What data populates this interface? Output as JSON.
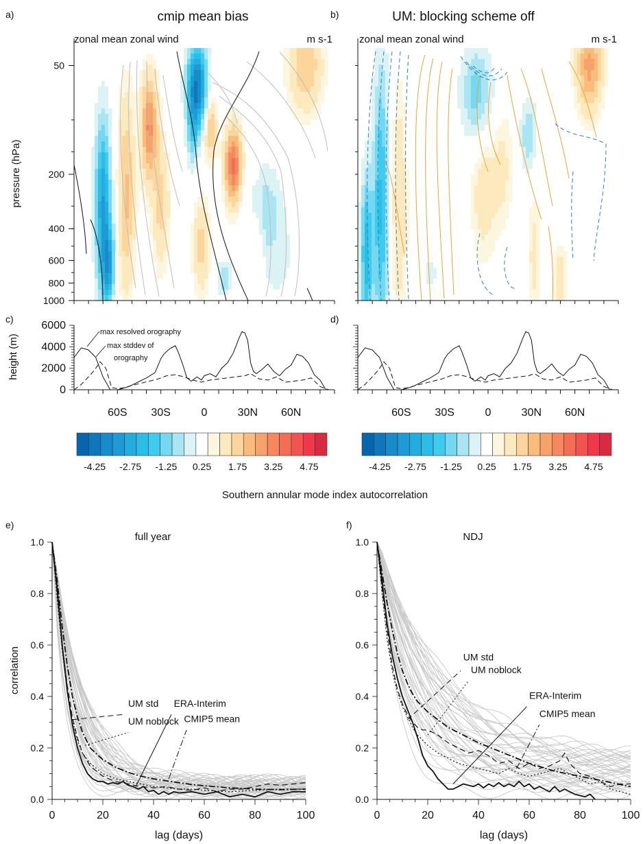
{
  "panel_labels": [
    "a)",
    "b)",
    "c)",
    "d)",
    "e)",
    "f)"
  ],
  "colorbar": {
    "colors": [
      "#0565ae",
      "#0f78bd",
      "#178bcb",
      "#1e9ad5",
      "#25acdf",
      "#2cbde7",
      "#3fcbee",
      "#73d8f0",
      "#a9e5f2",
      "#dcf3f6",
      "#ffffff",
      "#fdf6df",
      "#fde9be",
      "#fbd59b",
      "#f9bc7c",
      "#f8a26b",
      "#f6885f",
      "#f46e56",
      "#f3534f",
      "#f1384a",
      "#d62b40"
    ],
    "tick_labels": [
      "-4.25",
      "-2.75",
      "-1.25",
      "0.25",
      "1.75",
      "3.25",
      "4.75"
    ]
  },
  "chart_data": [
    {
      "id": "a",
      "type": "heatmap",
      "title": "cmip mean bias",
      "subtitle": "zonal mean zonal wind",
      "units_label": "m s-1",
      "ylabel": "pressure (hPa)",
      "yticks": [
        "50",
        "200",
        "400",
        "600",
        "800",
        "1000"
      ],
      "ylim": [
        1000,
        40
      ],
      "xlim": [
        -90,
        90
      ],
      "cells": [
        {
          "x": -70,
          "p": 300,
          "v": -3.5,
          "sx": 4,
          "sp": 240
        },
        {
          "x": -66,
          "p": 650,
          "v": -2.8,
          "sx": 3,
          "sp": 220
        },
        {
          "x": -54,
          "p": 260,
          "v": 1.6,
          "sx": 4,
          "sp": 220
        },
        {
          "x": -38,
          "p": 110,
          "v": 2.6,
          "sx": 4,
          "sp": 50
        },
        {
          "x": -30,
          "p": 300,
          "v": 1.2,
          "sx": 4,
          "sp": 160
        },
        {
          "x": -5,
          "p": 65,
          "v": -4.6,
          "sx": 5,
          "sp": 25
        },
        {
          "x": -8,
          "p": 120,
          "v": -1.5,
          "sx": 3,
          "sp": 40
        },
        {
          "x": 4,
          "p": 110,
          "v": 1.8,
          "sx": 3,
          "sp": 30
        },
        {
          "x": 20,
          "p": 180,
          "v": 3.2,
          "sx": 4,
          "sp": 60
        },
        {
          "x": -2,
          "p": 500,
          "v": 1.2,
          "sx": 4,
          "sp": 200
        },
        {
          "x": 14,
          "p": 750,
          "v": -1.4,
          "sx": 4,
          "sp": 120
        },
        {
          "x": 42,
          "p": 300,
          "v": -1.2,
          "sx": 8,
          "sp": 120
        },
        {
          "x": 50,
          "p": 600,
          "v": -0.6,
          "sx": 12,
          "sp": 300
        },
        {
          "x": 70,
          "p": 50,
          "v": 1.5,
          "sx": 8,
          "sp": 20
        },
        {
          "x": 37,
          "p": 500,
          "v": 0.8,
          "sx": 3,
          "sp": 250
        }
      ]
    },
    {
      "id": "b",
      "type": "heatmap",
      "title": "UM: blocking scheme off",
      "subtitle": "zonal mean zonal wind",
      "units_label": "m s-1",
      "ylim": [
        1000,
        40
      ],
      "xlim": [
        -90,
        90
      ],
      "cells": [
        {
          "x": -84,
          "p": 550,
          "v": -2.8,
          "sx": 3,
          "sp": 400
        },
        {
          "x": -74,
          "p": 300,
          "v": -2.6,
          "sx": 4,
          "sp": 400
        },
        {
          "x": -62,
          "p": 300,
          "v": 1.0,
          "sx": 4,
          "sp": 300
        },
        {
          "x": -8,
          "p": 70,
          "v": -1.8,
          "sx": 8,
          "sp": 30
        },
        {
          "x": -3,
          "p": 250,
          "v": 0.8,
          "sx": 6,
          "sp": 150
        },
        {
          "x": 10,
          "p": 180,
          "v": 0.6,
          "sx": 5,
          "sp": 100
        },
        {
          "x": 28,
          "p": 120,
          "v": -1.5,
          "sx": 4,
          "sp": 40
        },
        {
          "x": 32,
          "p": 550,
          "v": 0.7,
          "sx": 3,
          "sp": 300
        },
        {
          "x": 50,
          "p": 700,
          "v": 0.8,
          "sx": 4,
          "sp": 300
        },
        {
          "x": 52,
          "p": 300,
          "v": -0.5,
          "sx": 8,
          "sp": 150
        },
        {
          "x": 70,
          "p": 50,
          "v": 2.2,
          "sx": 6,
          "sp": 20
        },
        {
          "x": -40,
          "p": 700,
          "v": -0.6,
          "sx": 6,
          "sp": 150
        }
      ]
    },
    {
      "id": "c",
      "type": "line",
      "ylabel": "height (m)",
      "yticks": [
        0,
        2000,
        4000,
        6000
      ],
      "ylim": [
        0,
        6000
      ],
      "xlim": [
        -90,
        90
      ],
      "xtick_labels": [
        {
          "x": -60,
          "label": "60S"
        },
        {
          "x": -30,
          "label": "30S"
        },
        {
          "x": 0,
          "label": "0"
        },
        {
          "x": 30,
          "label": "30N"
        },
        {
          "x": 60,
          "label": "60N"
        }
      ],
      "annotations": [
        "max resolved orography",
        "max stddev of",
        "orography"
      ],
      "series": [
        {
          "style": "solid",
          "x": [
            -90,
            -85,
            -80,
            -75,
            -70,
            -65,
            -62,
            -60,
            -57,
            -52,
            -46,
            -40,
            -34,
            -30,
            -28,
            -24,
            -20,
            -18,
            -15,
            -12,
            -9,
            -5,
            -2,
            0,
            4,
            8,
            12,
            16,
            20,
            24,
            26,
            28,
            30,
            32,
            34,
            36,
            40,
            44,
            48,
            52,
            56,
            60,
            64,
            68,
            72,
            76,
            80,
            84,
            90
          ],
          "y": [
            3000,
            3900,
            3700,
            3000,
            1200,
            0,
            0,
            0,
            100,
            300,
            700,
            1100,
            1600,
            2900,
            3300,
            3800,
            4100,
            3500,
            2400,
            1100,
            800,
            1200,
            900,
            1300,
            1500,
            1200,
            2000,
            2500,
            3400,
            4800,
            5400,
            5300,
            4600,
            2500,
            1700,
            1500,
            1900,
            2400,
            1700,
            1300,
            1900,
            2300,
            3300,
            3100,
            2500,
            1400,
            900,
            0,
            0
          ]
        },
        {
          "style": "dashed",
          "x": [
            -90,
            -85,
            -80,
            -76,
            -72,
            -68,
            -64,
            -60,
            -55,
            -50,
            -44,
            -38,
            -32,
            -26,
            -20,
            -14,
            -8,
            -2,
            4,
            10,
            16,
            22,
            28,
            32,
            38,
            44,
            50,
            56,
            62,
            68,
            74,
            80,
            86,
            90
          ],
          "y": [
            0,
            500,
            1200,
            1800,
            2600,
            2000,
            200,
            100,
            200,
            400,
            600,
            800,
            1000,
            1300,
            1400,
            1200,
            900,
            700,
            900,
            1000,
            1100,
            1200,
            1300,
            1500,
            1000,
            900,
            1200,
            700,
            800,
            900,
            1100,
            300,
            0,
            0
          ]
        }
      ]
    },
    {
      "id": "d",
      "type": "line",
      "ylim": [
        0,
        6000
      ],
      "xlim": [
        -90,
        90
      ],
      "xtick_labels": [
        {
          "x": -60,
          "label": "60S"
        },
        {
          "x": -30,
          "label": "30S"
        },
        {
          "x": 0,
          "label": "0"
        },
        {
          "x": 30,
          "label": "30N"
        },
        {
          "x": 60,
          "label": "60N"
        }
      ]
    },
    {
      "id": "e",
      "type": "line",
      "suptitle": "Southern annular mode index autocorrelation",
      "title": "full year",
      "xlabel": "lag (days)",
      "ylabel": "correlation",
      "xlim": [
        0,
        100
      ],
      "ylim": [
        0,
        1
      ],
      "xticks": [
        0,
        20,
        40,
        60,
        80,
        100
      ],
      "yticks": [
        "0.0",
        "0.2",
        "0.4",
        "0.6",
        "0.8",
        "1.0"
      ],
      "annotations": [
        {
          "text": "UM std",
          "x": 30,
          "y": 0.35
        },
        {
          "text": "UM noblock",
          "x": 30,
          "y": 0.28
        },
        {
          "text": "ERA-Interim",
          "x": 48,
          "y": 0.35
        },
        {
          "text": "CMIP5 mean",
          "x": 52,
          "y": 0.29
        }
      ],
      "series": [
        {
          "name": "ERA-Interim",
          "style": "solid",
          "x": [
            0,
            2,
            4,
            6,
            8,
            10,
            12,
            14,
            16,
            18,
            20,
            22,
            24,
            26,
            28,
            30,
            32,
            34,
            36,
            38,
            40,
            42,
            44,
            46,
            48,
            50,
            55,
            60,
            65,
            70,
            75,
            80,
            85,
            90,
            95,
            100
          ],
          "y": [
            1.0,
            0.82,
            0.6,
            0.42,
            0.29,
            0.2,
            0.14,
            0.1,
            0.08,
            0.07,
            0.07,
            0.06,
            0.065,
            0.06,
            0.07,
            0.055,
            0.05,
            0.04,
            0.05,
            0.03,
            0.035,
            0.02,
            0.03,
            0.02,
            0.03,
            0.025,
            0.03,
            0.02,
            0.03,
            0.01,
            0.02,
            0.01,
            0.03,
            0.02,
            0.03,
            0.03
          ]
        },
        {
          "name": "CMIP5 mean",
          "style": "dashdot",
          "x": [
            0,
            2,
            4,
            6,
            8,
            10,
            12,
            15,
            20,
            25,
            30,
            35,
            40,
            45,
            50,
            55,
            60,
            70,
            80,
            90,
            100
          ],
          "y": [
            1.0,
            0.85,
            0.67,
            0.52,
            0.4,
            0.32,
            0.26,
            0.2,
            0.155,
            0.125,
            0.105,
            0.09,
            0.08,
            0.072,
            0.065,
            0.058,
            0.053,
            0.045,
            0.04,
            0.038,
            0.04
          ]
        },
        {
          "name": "UM std",
          "style": "dashed",
          "x": [
            0,
            2,
            4,
            6,
            8,
            10,
            12,
            15,
            20,
            25,
            30,
            35,
            40,
            45,
            50,
            55,
            60,
            65,
            70,
            75,
            80,
            85,
            90,
            95,
            100
          ],
          "y": [
            1.0,
            0.8,
            0.6,
            0.44,
            0.32,
            0.24,
            0.18,
            0.13,
            0.09,
            0.07,
            0.06,
            0.05,
            0.045,
            0.05,
            0.04,
            0.035,
            0.045,
            0.03,
            0.04,
            0.04,
            0.05,
            0.06,
            0.055,
            0.06,
            0.065
          ]
        },
        {
          "name": "UM noblock",
          "style": "dotted",
          "x": [
            0,
            2,
            4,
            6,
            8,
            10,
            12,
            15,
            20,
            25,
            30,
            35,
            40,
            45,
            50,
            55,
            60,
            70,
            80,
            90,
            100
          ],
          "y": [
            1.0,
            0.78,
            0.58,
            0.42,
            0.31,
            0.23,
            0.18,
            0.14,
            0.1,
            0.08,
            0.07,
            0.06,
            0.05,
            0.045,
            0.04,
            0.04,
            0.035,
            0.03,
            0.035,
            0.04,
            0.04
          ]
        }
      ]
    },
    {
      "id": "f",
      "type": "line",
      "title": "NDJ",
      "xlabel": "lag (days)",
      "xlim": [
        0,
        100
      ],
      "ylim": [
        0,
        1
      ],
      "xticks": [
        0,
        20,
        40,
        60,
        80,
        100
      ],
      "yticks": [
        "0.0",
        "0.2",
        "0.4",
        "0.6",
        "0.8",
        "1.0"
      ],
      "annotations": [
        {
          "text": "UM std",
          "x": 34,
          "y": 0.53
        },
        {
          "text": "UM noblock",
          "x": 37,
          "y": 0.48
        },
        {
          "text": "ERA-Interim",
          "x": 60,
          "y": 0.38
        },
        {
          "text": "CMIP5 mean",
          "x": 64,
          "y": 0.31
        }
      ],
      "series": [
        {
          "name": "ERA-Interim",
          "style": "solid",
          "x": [
            0,
            2,
            4,
            6,
            8,
            10,
            12,
            14,
            16,
            18,
            20,
            22,
            24,
            26,
            28,
            30,
            32,
            34,
            36,
            38,
            40,
            42,
            44,
            46,
            48,
            50,
            52,
            54,
            56,
            58,
            60,
            62,
            64,
            66,
            68,
            70,
            72,
            74,
            76,
            78,
            80,
            82,
            84,
            86
          ],
          "y": [
            1.0,
            0.85,
            0.68,
            0.56,
            0.47,
            0.4,
            0.35,
            0.3,
            0.24,
            0.17,
            0.13,
            0.11,
            0.08,
            0.06,
            0.04,
            0.04,
            0.05,
            0.06,
            0.055,
            0.05,
            0.06,
            0.045,
            0.06,
            0.05,
            0.065,
            0.05,
            0.06,
            0.05,
            0.07,
            0.05,
            0.06,
            0.04,
            0.05,
            0.04,
            0.03,
            0.05,
            0.03,
            0.04,
            0.03,
            0.02,
            0.015,
            0.01,
            0.02,
            0.0
          ]
        },
        {
          "name": "CMIP5 mean",
          "style": "dashdot",
          "x": [
            0,
            2,
            4,
            6,
            8,
            10,
            12,
            14,
            16,
            18,
            20,
            24,
            28,
            32,
            36,
            40,
            45,
            50,
            55,
            60,
            65,
            70,
            75,
            80,
            85,
            90,
            95,
            100
          ],
          "y": [
            1.0,
            0.88,
            0.76,
            0.66,
            0.57,
            0.5,
            0.45,
            0.41,
            0.38,
            0.36,
            0.34,
            0.31,
            0.28,
            0.26,
            0.24,
            0.22,
            0.2,
            0.18,
            0.16,
            0.14,
            0.125,
            0.11,
            0.1,
            0.09,
            0.08,
            0.07,
            0.06,
            0.05
          ]
        },
        {
          "name": "UM std",
          "style": "dashed",
          "x": [
            0,
            2,
            4,
            6,
            8,
            10,
            12,
            14,
            16,
            18,
            20,
            24,
            28,
            32,
            36,
            40,
            44,
            48,
            52,
            56,
            60,
            64,
            68,
            72,
            74,
            76,
            80,
            84,
            88,
            92,
            96,
            100
          ],
          "y": [
            1.0,
            0.82,
            0.66,
            0.52,
            0.43,
            0.37,
            0.33,
            0.3,
            0.28,
            0.27,
            0.27,
            0.25,
            0.22,
            0.2,
            0.18,
            0.19,
            0.17,
            0.14,
            0.15,
            0.12,
            0.14,
            0.12,
            0.13,
            0.15,
            0.18,
            0.14,
            0.1,
            0.09,
            0.07,
            0.05,
            0.06,
            0.06
          ]
        },
        {
          "name": "UM noblock",
          "style": "dotted",
          "x": [
            0,
            2,
            4,
            6,
            8,
            10,
            12,
            14,
            16,
            18,
            20,
            24,
            28,
            32,
            36,
            40,
            44,
            48,
            52,
            56,
            60,
            64,
            68,
            72,
            76,
            80,
            84,
            88,
            92,
            96,
            100
          ],
          "y": [
            1.0,
            0.8,
            0.62,
            0.5,
            0.42,
            0.36,
            0.32,
            0.28,
            0.25,
            0.23,
            0.21,
            0.18,
            0.16,
            0.14,
            0.13,
            0.12,
            0.11,
            0.1,
            0.12,
            0.1,
            0.09,
            0.1,
            0.11,
            0.12,
            0.1,
            0.08,
            0.06,
            0.07,
            0.04,
            0.03,
            0.02
          ]
        }
      ]
    }
  ]
}
